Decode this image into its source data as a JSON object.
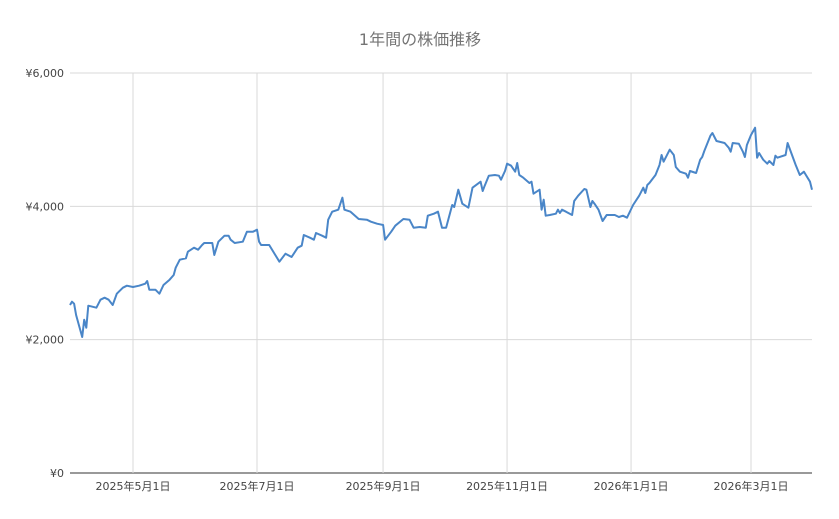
{
  "chart_data": {
    "type": "line",
    "title": "1年間の株価推移",
    "xlabel": "",
    "ylabel": "",
    "ylim": [
      0,
      6000
    ],
    "xlim": [
      "2025-03-31",
      "2026-03-31"
    ],
    "grid": true,
    "legend": "none",
    "y_ticks": [
      {
        "value": 0,
        "label": "¥0"
      },
      {
        "value": 2000,
        "label": "¥2,000"
      },
      {
        "value": 4000,
        "label": "¥4,000"
      },
      {
        "value": 6000,
        "label": "¥6,000"
      }
    ],
    "x_ticks": [
      {
        "date": "2025-05-01",
        "label": "2025年5月1日"
      },
      {
        "date": "2025-07-01",
        "label": "2025年7月1日"
      },
      {
        "date": "2025-09-01",
        "label": "2025年9月1日"
      },
      {
        "date": "2025-11-01",
        "label": "2025年11月1日"
      },
      {
        "date": "2026-01-01",
        "label": "2026年1月1日"
      },
      {
        "date": "2026-03-01",
        "label": "2026年3月1日"
      }
    ],
    "series": [
      {
        "color": "#4a86c8",
        "points": [
          [
            "2025-03-31",
            2520
          ],
          [
            "2025-04-01",
            2570
          ],
          [
            "2025-04-02",
            2540
          ],
          [
            "2025-04-03",
            2370
          ],
          [
            "2025-04-06",
            2040
          ],
          [
            "2025-04-07",
            2300
          ],
          [
            "2025-04-08",
            2180
          ],
          [
            "2025-04-09",
            2510
          ],
          [
            "2025-04-13",
            2480
          ],
          [
            "2025-04-15",
            2600
          ],
          [
            "2025-04-17",
            2630
          ],
          [
            "2025-04-19",
            2600
          ],
          [
            "2025-04-21",
            2520
          ],
          [
            "2025-04-23",
            2690
          ],
          [
            "2025-04-26",
            2780
          ],
          [
            "2025-04-28",
            2810
          ],
          [
            "2025-05-01",
            2790
          ],
          [
            "2025-05-04",
            2810
          ],
          [
            "2025-05-07",
            2840
          ],
          [
            "2025-05-08",
            2880
          ],
          [
            "2025-05-09",
            2750
          ],
          [
            "2025-05-12",
            2750
          ],
          [
            "2025-05-14",
            2690
          ],
          [
            "2025-05-16",
            2820
          ],
          [
            "2025-05-19",
            2900
          ],
          [
            "2025-05-21",
            2970
          ],
          [
            "2025-05-22",
            3080
          ],
          [
            "2025-05-24",
            3200
          ],
          [
            "2025-05-27",
            3220
          ],
          [
            "2025-05-28",
            3320
          ],
          [
            "2025-05-31",
            3380
          ],
          [
            "2025-06-02",
            3350
          ],
          [
            "2025-06-04",
            3420
          ],
          [
            "2025-06-05",
            3450
          ],
          [
            "2025-06-09",
            3450
          ],
          [
            "2025-06-10",
            3270
          ],
          [
            "2025-06-12",
            3470
          ],
          [
            "2025-06-15",
            3560
          ],
          [
            "2025-06-17",
            3560
          ],
          [
            "2025-06-18",
            3500
          ],
          [
            "2025-06-20",
            3450
          ],
          [
            "2025-06-24",
            3470
          ],
          [
            "2025-06-26",
            3620
          ],
          [
            "2025-06-29",
            3620
          ],
          [
            "2025-07-01",
            3650
          ],
          [
            "2025-07-02",
            3470
          ],
          [
            "2025-07-03",
            3420
          ],
          [
            "2025-07-07",
            3420
          ],
          [
            "2025-07-10",
            3270
          ],
          [
            "2025-07-12",
            3170
          ],
          [
            "2025-07-15",
            3290
          ],
          [
            "2025-07-18",
            3240
          ],
          [
            "2025-07-21",
            3380
          ],
          [
            "2025-07-23",
            3410
          ],
          [
            "2025-07-24",
            3570
          ],
          [
            "2025-07-27",
            3530
          ],
          [
            "2025-07-29",
            3500
          ],
          [
            "2025-07-30",
            3600
          ],
          [
            "2025-08-02",
            3560
          ],
          [
            "2025-08-04",
            3530
          ],
          [
            "2025-08-05",
            3800
          ],
          [
            "2025-08-07",
            3920
          ],
          [
            "2025-08-10",
            3950
          ],
          [
            "2025-08-12",
            4130
          ],
          [
            "2025-08-13",
            3950
          ],
          [
            "2025-08-16",
            3920
          ],
          [
            "2025-08-20",
            3810
          ],
          [
            "2025-08-24",
            3800
          ],
          [
            "2025-08-26",
            3770
          ],
          [
            "2025-08-29",
            3740
          ],
          [
            "2025-09-01",
            3720
          ],
          [
            "2025-09-02",
            3500
          ],
          [
            "2025-09-05",
            3620
          ],
          [
            "2025-09-07",
            3710
          ],
          [
            "2025-09-11",
            3810
          ],
          [
            "2025-09-14",
            3800
          ],
          [
            "2025-09-16",
            3680
          ],
          [
            "2025-09-19",
            3690
          ],
          [
            "2025-09-22",
            3680
          ],
          [
            "2025-09-23",
            3860
          ],
          [
            "2025-09-26",
            3890
          ],
          [
            "2025-09-28",
            3920
          ],
          [
            "2025-09-30",
            3680
          ],
          [
            "2025-10-02",
            3680
          ],
          [
            "2025-10-05",
            4020
          ],
          [
            "2025-10-06",
            3990
          ],
          [
            "2025-10-08",
            4250
          ],
          [
            "2025-10-10",
            4040
          ],
          [
            "2025-10-13",
            3980
          ],
          [
            "2025-10-15",
            4280
          ],
          [
            "2025-10-19",
            4370
          ],
          [
            "2025-10-20",
            4230
          ],
          [
            "2025-10-21",
            4310
          ],
          [
            "2025-10-23",
            4460
          ],
          [
            "2025-10-26",
            4470
          ],
          [
            "2025-10-28",
            4460
          ],
          [
            "2025-10-29",
            4400
          ],
          [
            "2025-10-31",
            4530
          ],
          [
            "2025-11-01",
            4640
          ],
          [
            "2025-11-03",
            4610
          ],
          [
            "2025-11-05",
            4520
          ],
          [
            "2025-11-06",
            4650
          ],
          [
            "2025-11-07",
            4470
          ],
          [
            "2025-11-09",
            4430
          ],
          [
            "2025-11-12",
            4350
          ],
          [
            "2025-11-13",
            4370
          ],
          [
            "2025-11-14",
            4190
          ],
          [
            "2025-11-17",
            4250
          ],
          [
            "2025-11-18",
            3950
          ],
          [
            "2025-11-19",
            4100
          ],
          [
            "2025-11-20",
            3860
          ],
          [
            "2025-11-22",
            3870
          ],
          [
            "2025-11-25",
            3890
          ],
          [
            "2025-11-26",
            3950
          ],
          [
            "2025-11-27",
            3900
          ],
          [
            "2025-11-28",
            3950
          ],
          [
            "2025-11-30",
            3920
          ],
          [
            "2025-12-03",
            3870
          ],
          [
            "2025-12-04",
            4080
          ],
          [
            "2025-12-06",
            4160
          ],
          [
            "2025-12-09",
            4260
          ],
          [
            "2025-12-10",
            4250
          ],
          [
            "2025-12-12",
            3990
          ],
          [
            "2025-12-13",
            4080
          ],
          [
            "2025-12-14",
            4040
          ],
          [
            "2025-12-16",
            3950
          ],
          [
            "2025-12-18",
            3780
          ],
          [
            "2025-12-20",
            3870
          ],
          [
            "2025-12-24",
            3870
          ],
          [
            "2025-12-26",
            3840
          ],
          [
            "2025-12-28",
            3860
          ],
          [
            "2025-12-30",
            3830
          ],
          [
            "2026-01-02",
            4020
          ],
          [
            "2026-01-05",
            4160
          ],
          [
            "2026-01-07",
            4280
          ],
          [
            "2026-01-08",
            4200
          ],
          [
            "2026-01-09",
            4320
          ],
          [
            "2026-01-10",
            4350
          ],
          [
            "2026-01-13",
            4470
          ],
          [
            "2026-01-15",
            4620
          ],
          [
            "2026-01-16",
            4770
          ],
          [
            "2026-01-17",
            4670
          ],
          [
            "2026-01-20",
            4850
          ],
          [
            "2026-01-22",
            4770
          ],
          [
            "2026-01-23",
            4590
          ],
          [
            "2026-01-25",
            4520
          ],
          [
            "2026-01-28",
            4490
          ],
          [
            "2026-01-29",
            4430
          ],
          [
            "2026-01-30",
            4530
          ],
          [
            "2026-02-02",
            4500
          ],
          [
            "2026-02-04",
            4700
          ],
          [
            "2026-02-05",
            4740
          ],
          [
            "2026-02-06",
            4830
          ],
          [
            "2026-02-09",
            5060
          ],
          [
            "2026-02-10",
            5100
          ],
          [
            "2026-02-12",
            4980
          ],
          [
            "2026-02-16",
            4950
          ],
          [
            "2026-02-18",
            4880
          ],
          [
            "2026-02-19",
            4820
          ],
          [
            "2026-02-20",
            4950
          ],
          [
            "2026-02-23",
            4940
          ],
          [
            "2026-02-25",
            4820
          ],
          [
            "2026-02-26",
            4740
          ],
          [
            "2026-02-27",
            4920
          ],
          [
            "2026-03-01",
            5070
          ],
          [
            "2026-03-03",
            5180
          ],
          [
            "2026-03-04",
            4730
          ],
          [
            "2026-03-05",
            4800
          ],
          [
            "2026-03-07",
            4700
          ],
          [
            "2026-03-09",
            4640
          ],
          [
            "2026-03-10",
            4680
          ],
          [
            "2026-03-12",
            4620
          ],
          [
            "2026-03-13",
            4760
          ],
          [
            "2026-03-14",
            4730
          ],
          [
            "2026-03-18",
            4770
          ],
          [
            "2026-03-19",
            4950
          ],
          [
            "2026-03-23",
            4620
          ],
          [
            "2026-03-25",
            4470
          ],
          [
            "2026-03-27",
            4520
          ],
          [
            "2026-03-28",
            4470
          ],
          [
            "2026-03-30",
            4370
          ],
          [
            "2026-03-31",
            4250
          ]
        ]
      }
    ]
  }
}
